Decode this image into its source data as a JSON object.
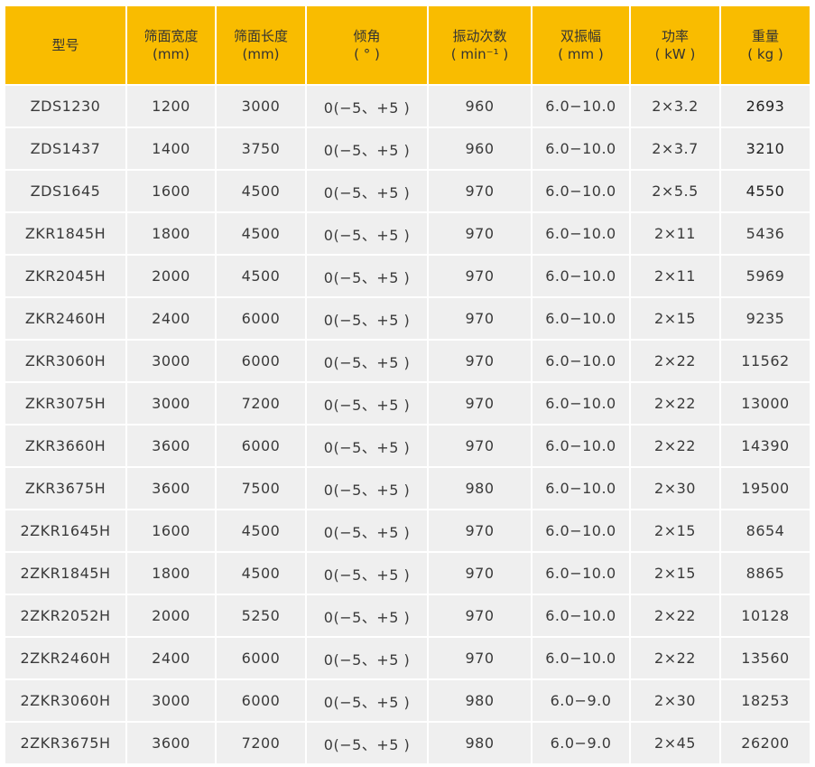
{
  "accent_color": "#f9bc00",
  "headers": [
    {
      "title": "型号",
      "unit": ""
    },
    {
      "title": "筛面宽度",
      "unit": "(mm)"
    },
    {
      "title": "筛面长度",
      "unit": "(mm)"
    },
    {
      "title": "倾角",
      "unit": "( °  )"
    },
    {
      "title": "振动次数",
      "unit": "( min⁻¹ )"
    },
    {
      "title": "双振幅",
      "unit": "( mm )"
    },
    {
      "title": "功率",
      "unit": "( kW )"
    },
    {
      "title": "重量",
      "unit": "( kg )"
    }
  ],
  "rows": [
    [
      "ZDS1230",
      "1200",
      "3000",
      "0(−5、+5 )",
      "960",
      "6.0−10.0",
      "2×3.2",
      "2693"
    ],
    [
      "ZDS1437",
      "1400",
      "3750",
      "0(−5、+5 )",
      "960",
      "6.0−10.0",
      "2×3.7",
      "3210"
    ],
    [
      "ZDS1645",
      "1600",
      "4500",
      "0(−5、+5 )",
      "970",
      "6.0−10.0",
      "2×5.5",
      "4550"
    ],
    [
      "ZKR1845H",
      "1800",
      "4500",
      "0(−5、+5 )",
      "970",
      "6.0−10.0",
      "2×11",
      "5436"
    ],
    [
      "ZKR2045H",
      "2000",
      "4500",
      "0(−5、+5 )",
      "970",
      "6.0−10.0",
      "2×11",
      "5969"
    ],
    [
      "ZKR2460H",
      "2400",
      "6000",
      "0(−5、+5 )",
      "970",
      "6.0−10.0",
      "2×15",
      "9235"
    ],
    [
      "ZKR3060H",
      "3000",
      "6000",
      "0(−5、+5 )",
      "970",
      "6.0−10.0",
      "2×22",
      "11562"
    ],
    [
      "ZKR3075H",
      "3000",
      "7200",
      "0(−5、+5 )",
      "970",
      "6.0−10.0",
      "2×22",
      "13000"
    ],
    [
      "ZKR3660H",
      "3600",
      "6000",
      "0(−5、+5 )",
      "970",
      "6.0−10.0",
      "2×22",
      "14390"
    ],
    [
      "ZKR3675H",
      "3600",
      "7500",
      "0(−5、+5 )",
      "980",
      "6.0−10.0",
      "2×30",
      "19500"
    ],
    [
      "2ZKR1645H",
      "1600",
      "4500",
      "0(−5、+5 )",
      "970",
      "6.0−10.0",
      "2×15",
      "8654"
    ],
    [
      "2ZKR1845H",
      "1800",
      "4500",
      "0(−5、+5 )",
      "970",
      "6.0−10.0",
      "2×15",
      "8865"
    ],
    [
      "2ZKR2052H",
      "2000",
      "5250",
      "0(−5、+5 )",
      "970",
      "6.0−10.0",
      "2×22",
      "10128"
    ],
    [
      "2ZKR2460H",
      "2400",
      "6000",
      "0(−5、+5 )",
      "970",
      "6.0−10.0",
      "2×22",
      "13560"
    ],
    [
      "2ZKR3060H",
      "3000",
      "6000",
      "0(−5、+5 )",
      "980",
      "6.0−9.0",
      "2×30",
      "18253"
    ],
    [
      "2ZKR3675H",
      "3600",
      "7200",
      "0(−5、+5 )",
      "980",
      "6.0−9.0",
      "2×45",
      "26200"
    ]
  ]
}
